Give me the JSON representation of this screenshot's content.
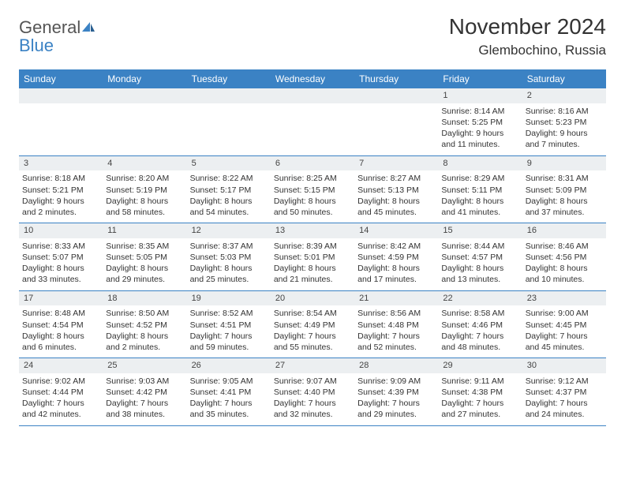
{
  "logo": {
    "general": "General",
    "blue": "Blue"
  },
  "title": "November 2024",
  "location": "Glembochino, Russia",
  "colors": {
    "header_bg": "#3b82c4",
    "header_text": "#ffffff",
    "daynum_bg": "#eceff1",
    "border": "#3b82c4",
    "text": "#333333",
    "logo_gray": "#555555",
    "logo_blue": "#3b82c4"
  },
  "weekdays": [
    "Sunday",
    "Monday",
    "Tuesday",
    "Wednesday",
    "Thursday",
    "Friday",
    "Saturday"
  ],
  "weeks": [
    [
      {
        "num": "",
        "sunrise": "",
        "sunset": "",
        "daylight1": "",
        "daylight2": ""
      },
      {
        "num": "",
        "sunrise": "",
        "sunset": "",
        "daylight1": "",
        "daylight2": ""
      },
      {
        "num": "",
        "sunrise": "",
        "sunset": "",
        "daylight1": "",
        "daylight2": ""
      },
      {
        "num": "",
        "sunrise": "",
        "sunset": "",
        "daylight1": "",
        "daylight2": ""
      },
      {
        "num": "",
        "sunrise": "",
        "sunset": "",
        "daylight1": "",
        "daylight2": ""
      },
      {
        "num": "1",
        "sunrise": "Sunrise: 8:14 AM",
        "sunset": "Sunset: 5:25 PM",
        "daylight1": "Daylight: 9 hours",
        "daylight2": "and 11 minutes."
      },
      {
        "num": "2",
        "sunrise": "Sunrise: 8:16 AM",
        "sunset": "Sunset: 5:23 PM",
        "daylight1": "Daylight: 9 hours",
        "daylight2": "and 7 minutes."
      }
    ],
    [
      {
        "num": "3",
        "sunrise": "Sunrise: 8:18 AM",
        "sunset": "Sunset: 5:21 PM",
        "daylight1": "Daylight: 9 hours",
        "daylight2": "and 2 minutes."
      },
      {
        "num": "4",
        "sunrise": "Sunrise: 8:20 AM",
        "sunset": "Sunset: 5:19 PM",
        "daylight1": "Daylight: 8 hours",
        "daylight2": "and 58 minutes."
      },
      {
        "num": "5",
        "sunrise": "Sunrise: 8:22 AM",
        "sunset": "Sunset: 5:17 PM",
        "daylight1": "Daylight: 8 hours",
        "daylight2": "and 54 minutes."
      },
      {
        "num": "6",
        "sunrise": "Sunrise: 8:25 AM",
        "sunset": "Sunset: 5:15 PM",
        "daylight1": "Daylight: 8 hours",
        "daylight2": "and 50 minutes."
      },
      {
        "num": "7",
        "sunrise": "Sunrise: 8:27 AM",
        "sunset": "Sunset: 5:13 PM",
        "daylight1": "Daylight: 8 hours",
        "daylight2": "and 45 minutes."
      },
      {
        "num": "8",
        "sunrise": "Sunrise: 8:29 AM",
        "sunset": "Sunset: 5:11 PM",
        "daylight1": "Daylight: 8 hours",
        "daylight2": "and 41 minutes."
      },
      {
        "num": "9",
        "sunrise": "Sunrise: 8:31 AM",
        "sunset": "Sunset: 5:09 PM",
        "daylight1": "Daylight: 8 hours",
        "daylight2": "and 37 minutes."
      }
    ],
    [
      {
        "num": "10",
        "sunrise": "Sunrise: 8:33 AM",
        "sunset": "Sunset: 5:07 PM",
        "daylight1": "Daylight: 8 hours",
        "daylight2": "and 33 minutes."
      },
      {
        "num": "11",
        "sunrise": "Sunrise: 8:35 AM",
        "sunset": "Sunset: 5:05 PM",
        "daylight1": "Daylight: 8 hours",
        "daylight2": "and 29 minutes."
      },
      {
        "num": "12",
        "sunrise": "Sunrise: 8:37 AM",
        "sunset": "Sunset: 5:03 PM",
        "daylight1": "Daylight: 8 hours",
        "daylight2": "and 25 minutes."
      },
      {
        "num": "13",
        "sunrise": "Sunrise: 8:39 AM",
        "sunset": "Sunset: 5:01 PM",
        "daylight1": "Daylight: 8 hours",
        "daylight2": "and 21 minutes."
      },
      {
        "num": "14",
        "sunrise": "Sunrise: 8:42 AM",
        "sunset": "Sunset: 4:59 PM",
        "daylight1": "Daylight: 8 hours",
        "daylight2": "and 17 minutes."
      },
      {
        "num": "15",
        "sunrise": "Sunrise: 8:44 AM",
        "sunset": "Sunset: 4:57 PM",
        "daylight1": "Daylight: 8 hours",
        "daylight2": "and 13 minutes."
      },
      {
        "num": "16",
        "sunrise": "Sunrise: 8:46 AM",
        "sunset": "Sunset: 4:56 PM",
        "daylight1": "Daylight: 8 hours",
        "daylight2": "and 10 minutes."
      }
    ],
    [
      {
        "num": "17",
        "sunrise": "Sunrise: 8:48 AM",
        "sunset": "Sunset: 4:54 PM",
        "daylight1": "Daylight: 8 hours",
        "daylight2": "and 6 minutes."
      },
      {
        "num": "18",
        "sunrise": "Sunrise: 8:50 AM",
        "sunset": "Sunset: 4:52 PM",
        "daylight1": "Daylight: 8 hours",
        "daylight2": "and 2 minutes."
      },
      {
        "num": "19",
        "sunrise": "Sunrise: 8:52 AM",
        "sunset": "Sunset: 4:51 PM",
        "daylight1": "Daylight: 7 hours",
        "daylight2": "and 59 minutes."
      },
      {
        "num": "20",
        "sunrise": "Sunrise: 8:54 AM",
        "sunset": "Sunset: 4:49 PM",
        "daylight1": "Daylight: 7 hours",
        "daylight2": "and 55 minutes."
      },
      {
        "num": "21",
        "sunrise": "Sunrise: 8:56 AM",
        "sunset": "Sunset: 4:48 PM",
        "daylight1": "Daylight: 7 hours",
        "daylight2": "and 52 minutes."
      },
      {
        "num": "22",
        "sunrise": "Sunrise: 8:58 AM",
        "sunset": "Sunset: 4:46 PM",
        "daylight1": "Daylight: 7 hours",
        "daylight2": "and 48 minutes."
      },
      {
        "num": "23",
        "sunrise": "Sunrise: 9:00 AM",
        "sunset": "Sunset: 4:45 PM",
        "daylight1": "Daylight: 7 hours",
        "daylight2": "and 45 minutes."
      }
    ],
    [
      {
        "num": "24",
        "sunrise": "Sunrise: 9:02 AM",
        "sunset": "Sunset: 4:44 PM",
        "daylight1": "Daylight: 7 hours",
        "daylight2": "and 42 minutes."
      },
      {
        "num": "25",
        "sunrise": "Sunrise: 9:03 AM",
        "sunset": "Sunset: 4:42 PM",
        "daylight1": "Daylight: 7 hours",
        "daylight2": "and 38 minutes."
      },
      {
        "num": "26",
        "sunrise": "Sunrise: 9:05 AM",
        "sunset": "Sunset: 4:41 PM",
        "daylight1": "Daylight: 7 hours",
        "daylight2": "and 35 minutes."
      },
      {
        "num": "27",
        "sunrise": "Sunrise: 9:07 AM",
        "sunset": "Sunset: 4:40 PM",
        "daylight1": "Daylight: 7 hours",
        "daylight2": "and 32 minutes."
      },
      {
        "num": "28",
        "sunrise": "Sunrise: 9:09 AM",
        "sunset": "Sunset: 4:39 PM",
        "daylight1": "Daylight: 7 hours",
        "daylight2": "and 29 minutes."
      },
      {
        "num": "29",
        "sunrise": "Sunrise: 9:11 AM",
        "sunset": "Sunset: 4:38 PM",
        "daylight1": "Daylight: 7 hours",
        "daylight2": "and 27 minutes."
      },
      {
        "num": "30",
        "sunrise": "Sunrise: 9:12 AM",
        "sunset": "Sunset: 4:37 PM",
        "daylight1": "Daylight: 7 hours",
        "daylight2": "and 24 minutes."
      }
    ]
  ]
}
